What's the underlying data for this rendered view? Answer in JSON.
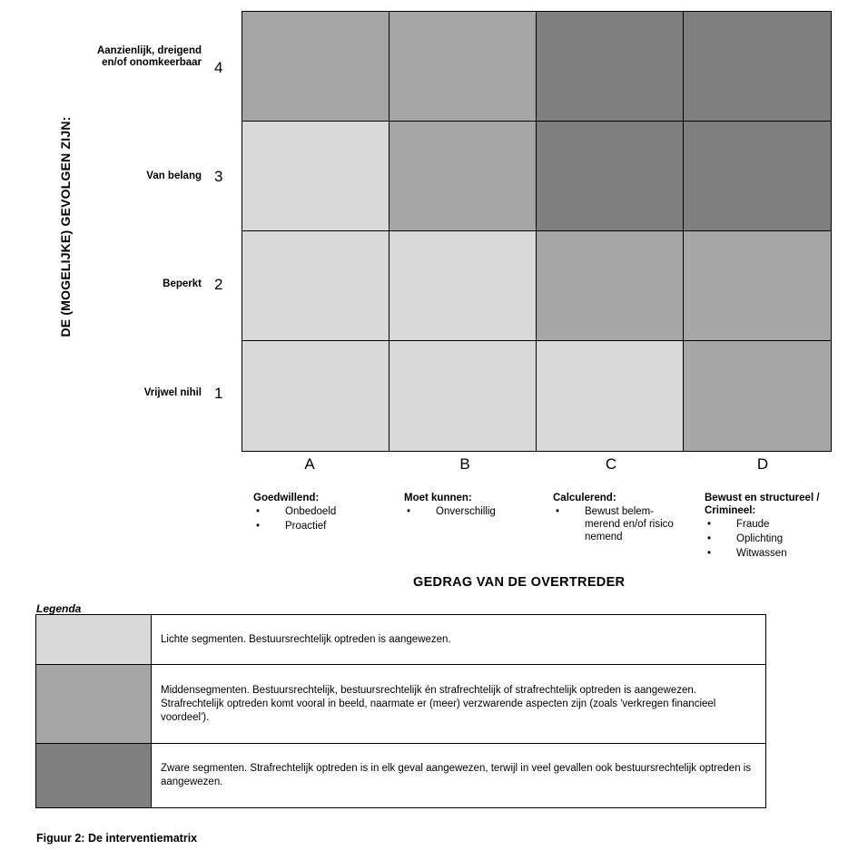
{
  "y_axis_title": "DE (MOGELIJKE) GEVOLGEN ZIJN:",
  "x_axis_title": "GEDRAG VAN DE OVERTREDER",
  "rows": [
    {
      "num": "4",
      "label": "Aanzienlijk, dreigend en/of onomkeerbaar",
      "cells": [
        "mid",
        "mid",
        "heavy",
        "heavy"
      ]
    },
    {
      "num": "3",
      "label": "Van belang",
      "cells": [
        "light",
        "mid",
        "heavy",
        "heavy"
      ]
    },
    {
      "num": "2",
      "label": "Beperkt",
      "cells": [
        "light",
        "light",
        "mid",
        "mid"
      ]
    },
    {
      "num": "1",
      "label": "Vrijwel nihil",
      "cells": [
        "light",
        "light",
        "light",
        "mid"
      ]
    }
  ],
  "columns": [
    {
      "letter": "A",
      "title": "Goedwillend:",
      "items": [
        "Onbedoeld",
        "Proactief"
      ]
    },
    {
      "letter": "B",
      "title": "Moet kunnen:",
      "items": [
        "Onverschillig"
      ]
    },
    {
      "letter": "C",
      "title": "Calculerend:",
      "items": [
        "Bewust belem-merend en/of risico nemend"
      ]
    },
    {
      "letter": "D",
      "title": "Bewust en structureel / Crimineel:",
      "items": [
        "Fraude",
        "Oplichting",
        "Witwassen"
      ]
    }
  ],
  "legend_title": "Legenda",
  "legend": [
    {
      "level": "light",
      "text": "Lichte segmenten. Bestuursrechtelijk optreden is aangewezen."
    },
    {
      "level": "mid",
      "text": "Middensegmenten. Bestuursrechtelijk, bestuursrechtelijk én strafrechtelijk of strafrechtelijk optreden is aangewezen. Strafrechtelijk optreden komt vooral in beeld, naarmate er (meer) verzwarende aspecten zijn (zoals 'verkregen financieel voordeel')."
    },
    {
      "level": "heavy",
      "text": "Zware segmenten. Strafrechtelijk optreden is in elk geval aangewezen, terwijl in veel gevallen ook bestuursrechtelijk optreden is aangewezen."
    }
  ],
  "caption": "Figuur 2: De interventiematrix",
  "colors": {
    "light": "#d9d9d9",
    "mid": "#a6a6a6",
    "heavy": "#7f7f7f"
  }
}
